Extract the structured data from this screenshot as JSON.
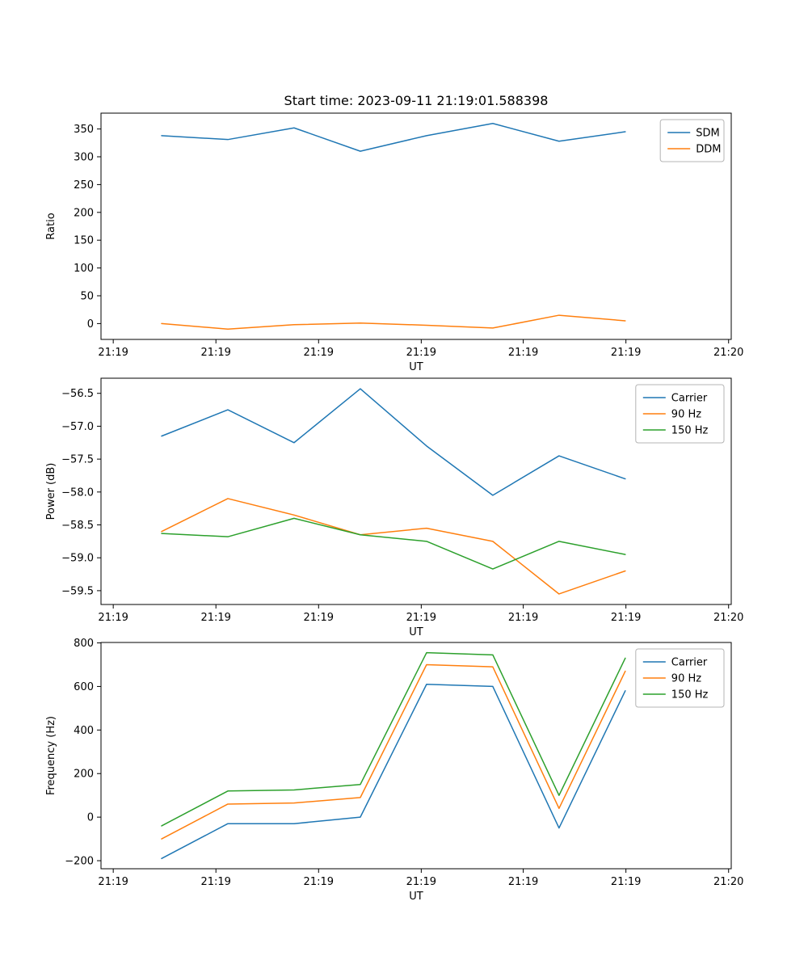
{
  "figure": {
    "title": "Start time: 2023-09-11 21:19:01.588398",
    "colors": {
      "blue": "#1f77b4",
      "orange": "#ff7f0e",
      "green": "#2ca02c"
    }
  },
  "chart_data": [
    {
      "id": "ratio",
      "type": "line",
      "title": "Start time: 2023-09-11 21:19:01.588398",
      "xlabel": "UT",
      "ylabel": "Ratio",
      "grid": false,
      "legend_position": "upper right",
      "x": [
        1,
        2,
        3,
        4,
        5,
        6,
        7,
        8
      ],
      "xlim": [
        0.085,
        9.6
      ],
      "xtick_pos": [
        0.27,
        1.82,
        3.37,
        4.92,
        6.46,
        8.01,
        9.56
      ],
      "xtick_labels": [
        "21:19",
        "21:19",
        "21:19",
        "21:19",
        "21:19",
        "21:19",
        "21:20"
      ],
      "ylim": [
        -28.5,
        378.5
      ],
      "ytick_vals": [
        0,
        50,
        100,
        150,
        200,
        250,
        300,
        350
      ],
      "ytick_labels": [
        "0",
        "50",
        "100",
        "150",
        "200",
        "250",
        "300",
        "350"
      ],
      "series": [
        {
          "name": "SDM",
          "color": "#1f77b4",
          "values": [
            338,
            331,
            352,
            310,
            338,
            360,
            328,
            345
          ]
        },
        {
          "name": "DDM",
          "color": "#ff7f0e",
          "values": [
            0,
            -10,
            -2,
            1,
            -3,
            -8,
            15,
            5
          ]
        }
      ]
    },
    {
      "id": "power",
      "type": "line",
      "title": "",
      "xlabel": "UT",
      "ylabel": "Power (dB)",
      "grid": false,
      "legend_position": "upper right",
      "x": [
        1,
        2,
        3,
        4,
        5,
        6,
        7,
        8
      ],
      "xlim": [
        0.085,
        9.6
      ],
      "xtick_pos": [
        0.27,
        1.82,
        3.37,
        4.92,
        6.46,
        8.01,
        9.56
      ],
      "xtick_labels": [
        "21:19",
        "21:19",
        "21:19",
        "21:19",
        "21:19",
        "21:19",
        "21:20"
      ],
      "ylim": [
        -59.71,
        -56.27
      ],
      "ytick_vals": [
        -56.5,
        -57.0,
        -57.5,
        -58.0,
        -58.5,
        -59.0,
        -59.5
      ],
      "ytick_labels": [
        "−56.5",
        "−57.0",
        "−57.5",
        "−58.0",
        "−58.5",
        "−59.0",
        "−59.5"
      ],
      "series": [
        {
          "name": "Carrier",
          "color": "#1f77b4",
          "values": [
            -57.15,
            -56.75,
            -57.25,
            -56.43,
            -57.3,
            -58.05,
            -57.45,
            -57.8
          ]
        },
        {
          "name": "90 Hz",
          "color": "#ff7f0e",
          "values": [
            -58.6,
            -58.1,
            -58.35,
            -58.65,
            -58.55,
            -58.75,
            -59.55,
            -59.2
          ]
        },
        {
          "name": "150 Hz",
          "color": "#2ca02c",
          "values": [
            -58.63,
            -58.68,
            -58.4,
            -58.65,
            -58.75,
            -59.17,
            -58.75,
            -58.95
          ]
        }
      ]
    },
    {
      "id": "frequency",
      "type": "line",
      "title": "",
      "xlabel": "UT",
      "ylabel": "Frequency (Hz)",
      "grid": false,
      "legend_position": "upper right",
      "x": [
        1,
        2,
        3,
        4,
        5,
        6,
        7,
        8
      ],
      "xlim": [
        0.085,
        9.6
      ],
      "xtick_pos": [
        0.27,
        1.82,
        3.37,
        4.92,
        6.46,
        8.01,
        9.56
      ],
      "xtick_labels": [
        "21:19",
        "21:19",
        "21:19",
        "21:19",
        "21:19",
        "21:19",
        "21:20"
      ],
      "ylim": [
        -237,
        802
      ],
      "ytick_vals": [
        -200,
        0,
        200,
        400,
        600,
        800
      ],
      "ytick_labels": [
        "−200",
        "0",
        "200",
        "400",
        "600",
        "800"
      ],
      "series": [
        {
          "name": "Carrier",
          "color": "#1f77b4",
          "values": [
            -190,
            -30,
            -30,
            0,
            610,
            600,
            -50,
            580
          ]
        },
        {
          "name": "90 Hz",
          "color": "#ff7f0e",
          "values": [
            -100,
            60,
            65,
            90,
            700,
            690,
            40,
            670
          ]
        },
        {
          "name": "150 Hz",
          "color": "#2ca02c",
          "values": [
            -40,
            120,
            125,
            150,
            755,
            745,
            100,
            730
          ]
        }
      ]
    }
  ]
}
